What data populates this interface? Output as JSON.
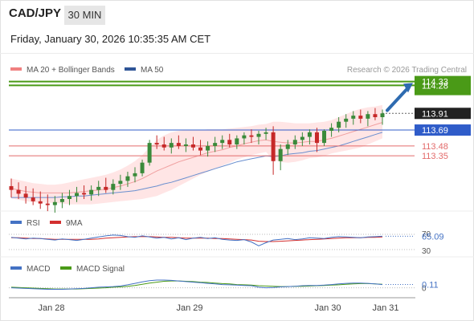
{
  "header": {
    "symbol": "CAD/JPY",
    "timeframe": "30 MIN",
    "datetime": "Friday, January 30, 2026 10:35:35 AM CET"
  },
  "legend": {
    "bb": {
      "label": "MA 20 + Bollinger Bands",
      "color": "#f08080"
    },
    "ma50": {
      "label": "MA 50",
      "color": "#2f5597"
    },
    "credit": "Research © 2026 Trading Central"
  },
  "colors": {
    "up": "#3a8a3a",
    "down": "#c62828",
    "band": "#ffdada",
    "ma20": "#f0a0a0",
    "ma50": "#6a8fcf",
    "green_level": "#4a9a17",
    "blue_level": "#2f5cc9",
    "red_level": "#e36b6b",
    "arrow": "#2e6bb0",
    "rsi": "#4472c4",
    "rsi_ma": "#d32f2f",
    "macd": "#4472c4",
    "macd_signal": "#4a9a17"
  },
  "chart_data": [
    {
      "type": "candlestick",
      "title": "CAD/JPY 30 MIN",
      "x_ticks": [
        "Jan 28",
        "Jan 29",
        "Jan 30",
        "Jan 31"
      ],
      "ylim": [
        112.6,
        114.4
      ],
      "ohlc": [
        [
          112.95,
          113.05,
          112.8,
          112.9
        ],
        [
          112.9,
          113.0,
          112.78,
          112.85
        ],
        [
          112.85,
          112.95,
          112.72,
          112.8
        ],
        [
          112.8,
          112.92,
          112.7,
          112.75
        ],
        [
          112.75,
          112.88,
          112.65,
          112.72
        ],
        [
          112.72,
          112.84,
          112.62,
          112.7
        ],
        [
          112.7,
          112.82,
          112.6,
          112.74
        ],
        [
          112.74,
          112.86,
          112.66,
          112.78
        ],
        [
          112.78,
          112.9,
          112.7,
          112.82
        ],
        [
          112.82,
          112.94,
          112.74,
          112.86
        ],
        [
          112.86,
          112.96,
          112.78,
          112.84
        ],
        [
          112.84,
          112.96,
          112.76,
          112.9
        ],
        [
          112.9,
          113.02,
          112.82,
          112.94
        ],
        [
          112.94,
          113.06,
          112.86,
          112.9
        ],
        [
          112.9,
          113.04,
          112.84,
          112.98
        ],
        [
          112.98,
          113.1,
          112.9,
          113.02
        ],
        [
          113.02,
          113.14,
          112.94,
          113.08
        ],
        [
          113.08,
          113.2,
          113.0,
          113.12
        ],
        [
          113.12,
          113.3,
          113.08,
          113.26
        ],
        [
          113.26,
          113.56,
          113.22,
          113.52
        ],
        [
          113.52,
          113.62,
          113.44,
          113.5
        ],
        [
          113.5,
          113.6,
          113.42,
          113.46
        ],
        [
          113.46,
          113.58,
          113.38,
          113.52
        ],
        [
          113.52,
          113.62,
          113.44,
          113.48
        ],
        [
          113.48,
          113.58,
          113.4,
          113.5
        ],
        [
          113.5,
          113.6,
          113.42,
          113.46
        ],
        [
          113.46,
          113.56,
          113.36,
          113.42
        ],
        [
          113.42,
          113.54,
          113.34,
          113.48
        ],
        [
          113.48,
          113.6,
          113.4,
          113.52
        ],
        [
          113.52,
          113.62,
          113.44,
          113.56
        ],
        [
          113.56,
          113.64,
          113.46,
          113.5
        ],
        [
          113.5,
          113.62,
          113.44,
          113.58
        ],
        [
          113.58,
          113.66,
          113.5,
          113.62
        ],
        [
          113.62,
          113.7,
          113.52,
          113.6
        ],
        [
          113.6,
          113.68,
          113.5,
          113.64
        ],
        [
          113.64,
          113.72,
          113.56,
          113.66
        ],
        [
          113.66,
          113.74,
          113.1,
          113.28
        ],
        [
          113.28,
          113.5,
          113.16,
          113.44
        ],
        [
          113.44,
          113.56,
          113.36,
          113.5
        ],
        [
          113.5,
          113.62,
          113.44,
          113.56
        ],
        [
          113.56,
          113.66,
          113.48,
          113.6
        ],
        [
          113.6,
          113.7,
          113.5,
          113.66
        ],
        [
          113.66,
          113.72,
          113.4,
          113.52
        ],
        [
          113.52,
          113.7,
          113.48,
          113.68
        ],
        [
          113.68,
          113.78,
          113.6,
          113.72
        ],
        [
          113.72,
          113.86,
          113.66,
          113.8
        ],
        [
          113.8,
          113.9,
          113.72,
          113.84
        ],
        [
          113.84,
          113.94,
          113.76,
          113.88
        ],
        [
          113.88,
          113.96,
          113.78,
          113.84
        ],
        [
          113.84,
          113.94,
          113.74,
          113.9
        ],
        [
          113.9,
          113.98,
          113.82,
          113.86
        ],
        [
          113.86,
          113.96,
          113.76,
          113.91
        ]
      ],
      "ma20": [
        112.92,
        112.9,
        112.88,
        112.87,
        112.86,
        112.86,
        112.86,
        112.86,
        112.86,
        112.87,
        112.88,
        112.89,
        112.9,
        112.91,
        112.93,
        112.95,
        112.98,
        113.01,
        113.05,
        113.1,
        113.15,
        113.19,
        113.23,
        113.27,
        113.3,
        113.33,
        113.36,
        113.39,
        113.41,
        113.43,
        113.46,
        113.48,
        113.51,
        113.53,
        113.55,
        113.56,
        113.54,
        113.53,
        113.52,
        113.52,
        113.53,
        113.54,
        113.54,
        113.56,
        113.58,
        113.61,
        113.64,
        113.67,
        113.7,
        113.73,
        113.76,
        113.79
      ],
      "bb_upper": [
        113.05,
        113.03,
        113.01,
        112.99,
        112.98,
        112.97,
        112.97,
        112.98,
        113.0,
        113.02,
        113.04,
        113.06,
        113.08,
        113.1,
        113.13,
        113.17,
        113.22,
        113.28,
        113.36,
        113.46,
        113.56,
        113.62,
        113.66,
        113.68,
        113.69,
        113.69,
        113.69,
        113.7,
        113.7,
        113.7,
        113.71,
        113.72,
        113.73,
        113.74,
        113.76,
        113.77,
        113.8,
        113.8,
        113.79,
        113.78,
        113.78,
        113.78,
        113.79,
        113.8,
        113.82,
        113.86,
        113.9,
        113.94,
        113.97,
        113.99,
        114.0,
        114.02
      ],
      "bb_lower": [
        112.79,
        112.77,
        112.75,
        112.74,
        112.73,
        112.73,
        112.73,
        112.72,
        112.71,
        112.71,
        112.71,
        112.71,
        112.72,
        112.73,
        112.74,
        112.75,
        112.76,
        112.77,
        112.78,
        112.8,
        112.82,
        112.86,
        112.9,
        112.95,
        113.0,
        113.05,
        113.1,
        113.14,
        113.18,
        113.22,
        113.26,
        113.3,
        113.33,
        113.36,
        113.38,
        113.4,
        113.3,
        113.27,
        113.26,
        113.27,
        113.29,
        113.32,
        113.33,
        113.35,
        113.38,
        113.4,
        113.42,
        113.44,
        113.46,
        113.5,
        113.54,
        113.58
      ],
      "ma50": [
        112.8,
        112.8,
        112.8,
        112.8,
        112.8,
        112.8,
        112.8,
        112.81,
        112.81,
        112.82,
        112.82,
        112.83,
        112.84,
        112.85,
        112.86,
        112.87,
        112.88,
        112.89,
        112.91,
        112.93,
        112.95,
        112.98,
        113.0,
        113.03,
        113.06,
        113.09,
        113.12,
        113.15,
        113.18,
        113.21,
        113.24,
        113.27,
        113.29,
        113.31,
        113.33,
        113.35,
        113.34,
        113.35,
        113.37,
        113.38,
        113.39,
        113.41,
        113.42,
        113.44,
        113.46,
        113.48,
        113.51,
        113.54,
        113.57,
        113.6,
        113.63,
        113.66
      ],
      "levels": [
        {
          "value": 114.33,
          "label": "114.33",
          "color": "#4a9a17",
          "kind": "resistance"
        },
        {
          "value": 114.28,
          "label": "114.28",
          "color": "#4a9a17",
          "kind": "resistance"
        },
        {
          "value": 113.69,
          "label": "113.69",
          "color": "#2f5cc9",
          "kind": "pivot"
        },
        {
          "value": 113.48,
          "label": "113.48",
          "color": "#e36b6b",
          "kind": "support"
        },
        {
          "value": 113.35,
          "label": "113.35",
          "color": "#e36b6b",
          "kind": "support"
        }
      ],
      "last_price": {
        "value": 113.91,
        "label": "113.91"
      },
      "arrow": {
        "from": 113.95,
        "to": 114.28
      }
    },
    {
      "type": "line",
      "legend": [
        {
          "name": "RSI"
        },
        {
          "name": "9MA"
        }
      ],
      "ylim": [
        30,
        70
      ],
      "ref_levels": [
        {
          "value": 70,
          "label": "70"
        },
        {
          "value": 30,
          "label": "30"
        }
      ],
      "last_value": {
        "value": 65.09,
        "label": "65.09"
      },
      "series": [
        {
          "name": "RSI",
          "values": [
            62,
            60,
            58,
            60,
            59,
            57,
            55,
            58,
            56,
            54,
            57,
            60,
            63,
            66,
            68,
            67,
            64,
            62,
            66,
            63,
            60,
            62,
            58,
            61,
            56,
            60,
            62,
            59,
            61,
            57,
            55,
            54,
            56,
            50,
            40,
            48,
            55,
            57,
            59,
            56,
            58,
            61,
            60,
            59,
            62,
            64,
            63,
            62,
            61,
            63,
            64,
            65
          ]
        },
        {
          "name": "9MA",
          "values": [
            61,
            61,
            60,
            59,
            59,
            58,
            57,
            57,
            57,
            57,
            57,
            57,
            58,
            60,
            61,
            62,
            63,
            64,
            64,
            64,
            63,
            62,
            62,
            61,
            60,
            60,
            60,
            60,
            59,
            59,
            58,
            57,
            56,
            55,
            52,
            51,
            51,
            52,
            53,
            54,
            55,
            56,
            57,
            58,
            59,
            60,
            61,
            61,
            61,
            62,
            62,
            63
          ]
        }
      ]
    },
    {
      "type": "line",
      "legend": [
        {
          "name": "MACD"
        },
        {
          "name": "MACD Signal"
        }
      ],
      "ylim": [
        -0.2,
        0.45
      ],
      "ref_levels": [
        {
          "value": 0,
          "label": "0"
        }
      ],
      "last_value": {
        "value": 0.11,
        "label": "0.11"
      },
      "series": [
        {
          "name": "MACD",
          "values": [
            0.0,
            -0.01,
            -0.02,
            -0.03,
            -0.04,
            -0.05,
            -0.05,
            -0.05,
            -0.04,
            -0.03,
            -0.02,
            0.0,
            0.02,
            0.03,
            0.04,
            0.06,
            0.1,
            0.15,
            0.2,
            0.24,
            0.26,
            0.26,
            0.25,
            0.23,
            0.21,
            0.19,
            0.17,
            0.15,
            0.13,
            0.11,
            0.1,
            0.09,
            0.08,
            0.07,
            0.02,
            0.0,
            0.01,
            0.03,
            0.04,
            0.05,
            0.07,
            0.08,
            0.08,
            0.09,
            0.11,
            0.13,
            0.15,
            0.16,
            0.16,
            0.15,
            0.13,
            0.11
          ]
        },
        {
          "name": "MACD Signal",
          "values": [
            0.02,
            0.01,
            0.0,
            -0.01,
            -0.02,
            -0.03,
            -0.04,
            -0.04,
            -0.04,
            -0.04,
            -0.03,
            -0.02,
            -0.01,
            0.0,
            0.02,
            0.03,
            0.05,
            0.08,
            0.12,
            0.16,
            0.19,
            0.22,
            0.23,
            0.23,
            0.22,
            0.21,
            0.19,
            0.18,
            0.16,
            0.14,
            0.13,
            0.11,
            0.1,
            0.09,
            0.07,
            0.06,
            0.05,
            0.04,
            0.04,
            0.05,
            0.05,
            0.06,
            0.07,
            0.08,
            0.09,
            0.1,
            0.12,
            0.13,
            0.14,
            0.14,
            0.13,
            0.12
          ]
        }
      ]
    }
  ]
}
